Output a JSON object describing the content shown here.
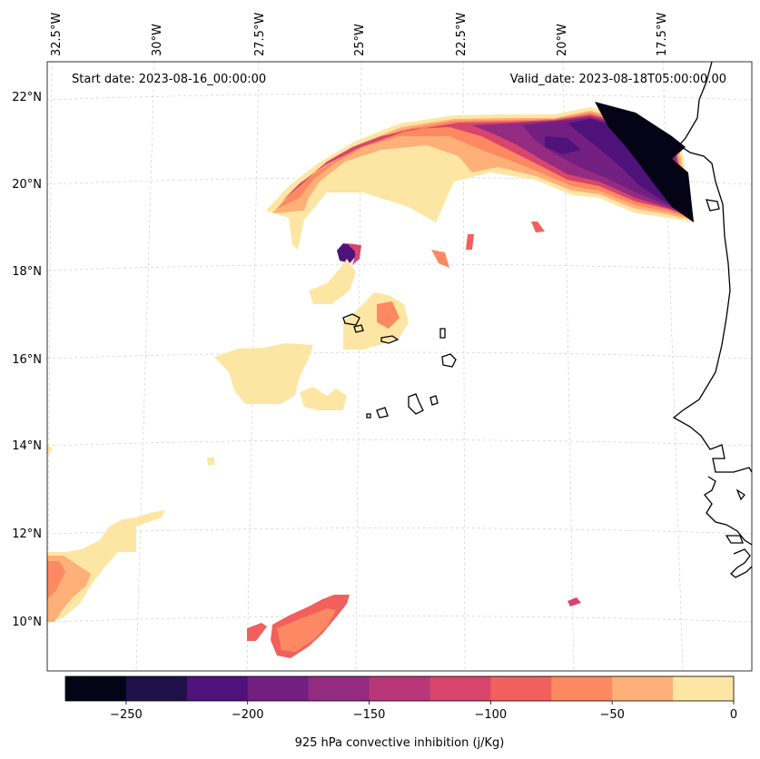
{
  "map": {
    "start_date": "Start date: 2023-08-16_00:00:00",
    "valid_date": "Valid_date: 2023-08-18T05:00:00.00",
    "lon_labels": [
      "32.5°W",
      "30°W",
      "27.5°W",
      "25°W",
      "22.5°W",
      "20°W",
      "17.5°W"
    ],
    "lat_labels": [
      "22°N",
      "20°N",
      "18°N",
      "16°N",
      "14°N",
      "12°N",
      "10°N"
    ],
    "variable": "925 hPa convective inhibition",
    "units": "j/Kg",
    "region": "Eastern tropical Atlantic, Cape Verde Islands and West African coast"
  },
  "colorbar": {
    "label": "925 hPa convective inhibition (j/Kg)",
    "min": -275,
    "max": 0,
    "step": 25,
    "tick_values": [
      -250,
      -200,
      -150,
      -100,
      -50,
      0
    ],
    "tick_labels": [
      "−250",
      "−200",
      "−150",
      "−100",
      "−50",
      "0"
    ],
    "colors": [
      "#050416",
      "#1f1147",
      "#4f127b",
      "#721f81",
      "#932b80",
      "#b73779",
      "#d8456c",
      "#f1605d",
      "#fc8961",
      "#feb078",
      "#fde6a4"
    ]
  }
}
